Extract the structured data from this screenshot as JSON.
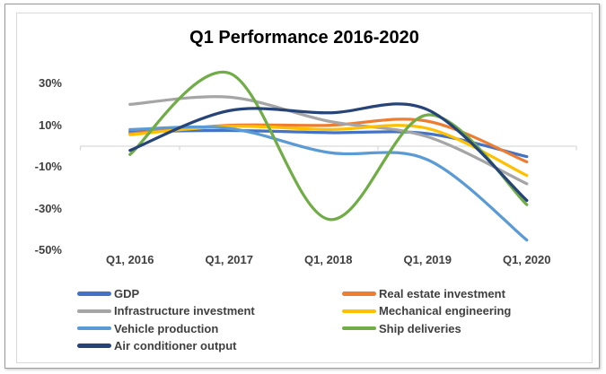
{
  "window": {
    "background_color": "#ffffff",
    "frame_border_color": "#9c9c9c",
    "card_border_color": "#d9d9d9"
  },
  "chart_data": {
    "type": "line",
    "smoothed": true,
    "title": "Q1 Performance 2016-2020",
    "xlabel": "",
    "ylabel": "",
    "grid": false,
    "legend_position": "bottom, two columns",
    "categories": [
      "Q1, 2016",
      "Q1, 2017",
      "Q1, 2018",
      "Q1, 2019",
      "Q1, 2020"
    ],
    "series": [
      {
        "name": "GDP",
        "color": "#4472C4",
        "values": [
          7,
          7.5,
          6.5,
          6,
          -5
        ]
      },
      {
        "name": "Real estate investment",
        "color": "#ED7D31",
        "values": [
          6,
          10,
          10,
          12,
          -7.5
        ]
      },
      {
        "name": "Infrastructure investment",
        "color": "#A5A5A5",
        "values": [
          20,
          23.5,
          12,
          4.5,
          -18
        ]
      },
      {
        "name": "Mechanical engineering",
        "color": "#FFC000",
        "values": [
          5.5,
          9.5,
          8,
          8.5,
          -14
        ]
      },
      {
        "name": "Vehicle production",
        "color": "#5B9BD5",
        "values": [
          8,
          8.5,
          -3,
          -6.5,
          -45
        ]
      },
      {
        "name": "Ship deliveries",
        "color": "#70AD47",
        "values": [
          -4,
          35,
          -35,
          15,
          -28
        ]
      },
      {
        "name": "Air conditioner output",
        "color": "#264478",
        "values": [
          -2,
          17,
          16,
          17.5,
          -26
        ]
      }
    ],
    "y_ticks": [
      "30%",
      "10%",
      "-10%",
      "-30%",
      "-50%"
    ],
    "y_tick_values": [
      30,
      10,
      -10,
      -30,
      -50
    ],
    "ylim": [
      -50,
      40
    ],
    "axis_line_color": "#d9d9d9",
    "tick_label_color": "#3f3f3f",
    "title_color": "#000000"
  }
}
